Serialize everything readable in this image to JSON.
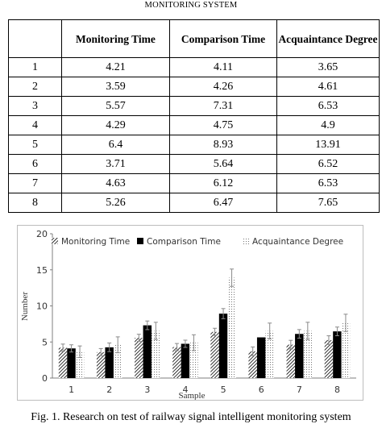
{
  "header": {
    "caption": "MONITORING SYSTEM"
  },
  "table": {
    "columns": [
      "",
      "Monitoring Time",
      "Comparison Time",
      "Acquaintance Degree"
    ],
    "rows": [
      [
        "1",
        "4.21",
        "4.11",
        "3.65"
      ],
      [
        "2",
        "3.59",
        "4.26",
        "4.61"
      ],
      [
        "3",
        "5.57",
        "7.31",
        "6.53"
      ],
      [
        "4",
        "4.29",
        "4.75",
        "4.9"
      ],
      [
        "5",
        "6.4",
        "8.93",
        "13.91"
      ],
      [
        "6",
        "3.71",
        "5.64",
        "6.52"
      ],
      [
        "7",
        "4.63",
        "6.12",
        "6.53"
      ],
      [
        "8",
        "5.26",
        "6.47",
        "7.65"
      ]
    ]
  },
  "chart_data": {
    "type": "bar",
    "categories": [
      "1",
      "2",
      "3",
      "4",
      "5",
      "6",
      "7",
      "8"
    ],
    "series": [
      {
        "name": "Monitoring Time",
        "values": [
          4.21,
          3.59,
          5.57,
          4.29,
          6.4,
          3.71,
          4.63,
          5.26
        ],
        "error": [
          0.5,
          0.5,
          0.5,
          0.5,
          0.5,
          0.6,
          0.6,
          0.6
        ],
        "style": "hatched"
      },
      {
        "name": "Comparison Time",
        "values": [
          4.11,
          4.26,
          7.31,
          4.75,
          8.93,
          5.64,
          6.12,
          6.47
        ],
        "error": [
          0.5,
          0.6,
          0.6,
          0.5,
          0.7,
          0.0,
          0.6,
          0.6
        ],
        "style": "solid"
      },
      {
        "name": "Acquaintance Degree",
        "values": [
          3.65,
          4.61,
          6.53,
          4.9,
          13.91,
          6.52,
          6.53,
          7.65
        ],
        "error": [
          0.8,
          1.1,
          1.2,
          1.1,
          1.2,
          1.1,
          1.2,
          1.2
        ],
        "style": "dotted"
      }
    ],
    "xlabel": "Sample",
    "ylabel": "Number",
    "ylim": [
      0,
      20
    ],
    "yticks": [
      "0",
      "5",
      "10",
      "15",
      "20"
    ],
    "legend_position": "top",
    "grid": false,
    "colors": {
      "bar": "#000000",
      "axis": "#7f7f7f",
      "frame": "#bdbdbd"
    }
  },
  "figure": {
    "caption": "Fig. 1. Research on test of railway signal intelligent monitoring system"
  }
}
